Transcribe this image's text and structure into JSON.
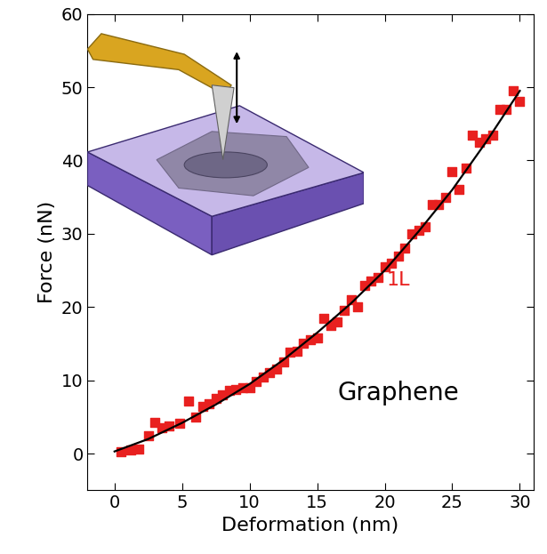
{
  "chart_data": {
    "type": "scatter",
    "x_label": "Deformation (nm)",
    "y_label": "Force (nN)",
    "annotations": [
      "1L",
      "Graphene"
    ],
    "annotation_colors": [
      "#e8201f",
      "#000000"
    ],
    "xlim": [
      -2,
      31
    ],
    "xticks": [
      0,
      5,
      10,
      15,
      20,
      25,
      30
    ],
    "ylim": [
      -5,
      60
    ],
    "yticks": [
      0,
      10,
      20,
      30,
      40,
      50,
      60
    ],
    "grid": false,
    "series": [
      {
        "type": "scatter",
        "color": "#e8201f",
        "marker": "square",
        "x": [
          0.5,
          1.2,
          1.8,
          2.5,
          3,
          3.5,
          4,
          4.8,
          5.5,
          6,
          6.5,
          7,
          7.5,
          8,
          8.5,
          9,
          9.5,
          10,
          10.5,
          11,
          11.5,
          12,
          12.5,
          13,
          13.5,
          14,
          14.5,
          15,
          15.5,
          16,
          16.5,
          17,
          17.5,
          18,
          18.5,
          19,
          19.5,
          20,
          20.5,
          21,
          21.5,
          22,
          22.5,
          23,
          23.5,
          24,
          24.5,
          25,
          25.5,
          26,
          26.5,
          27,
          27.5,
          28,
          28.5,
          29,
          29.5,
          30
        ],
        "values": [
          0.2,
          0.5,
          0.6,
          2.5,
          4.3,
          3.5,
          3.8,
          4.2,
          7.2,
          5,
          6.5,
          6.8,
          7.5,
          8,
          8.6,
          8.8,
          9,
          9,
          9.8,
          10.5,
          11,
          11.5,
          12.5,
          13.8,
          14,
          15,
          15.5,
          15.8,
          18.5,
          17.5,
          18,
          19.5,
          21,
          20,
          23,
          23.5,
          24,
          25.5,
          26,
          27,
          28,
          30,
          30.5,
          31,
          34,
          34,
          35,
          38.5,
          36,
          39,
          43.5,
          42.5,
          43,
          43.5,
          47,
          47,
          49.5,
          48
        ]
      },
      {
        "type": "line",
        "color": "#000000",
        "line_style": "solid",
        "x": [
          0,
          2.5,
          5,
          7.5,
          10,
          12.5,
          15,
          17.5,
          20,
          22.5,
          25,
          27.5,
          30
        ],
        "values": [
          0.3,
          2,
          4.2,
          6.7,
          9.5,
          12.8,
          16.5,
          20.5,
          25,
          30.3,
          36,
          42.5,
          49.5
        ]
      }
    ]
  }
}
